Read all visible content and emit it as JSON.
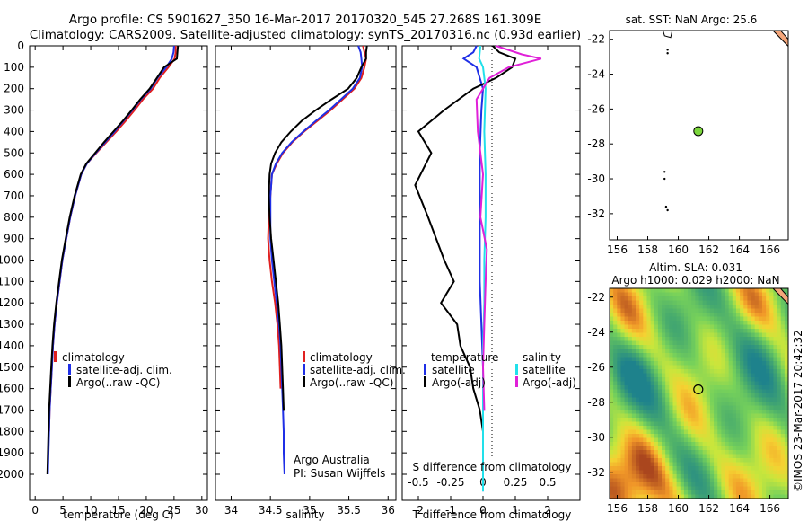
{
  "header": {
    "line1": "Argo profile: CS 5901627_350 16-Mar-2017 20170320_545 27.268S 161.309E",
    "line2": "Climatology: CARS2009. Satellite-adjusted climatology: synTS_20170316.nc (0.93d earlier)"
  },
  "colors": {
    "climatology": "#e02020",
    "satellite": "#1f2fe6",
    "argo": "#000000",
    "salinity_satellite": "#22e0ea",
    "salinity_argo": "#e020d8",
    "float_marker": "#7bd63c",
    "land": "#f4a67a"
  },
  "chart_data": [
    {
      "id": "temperature",
      "type": "line",
      "xlabel": "temperature (deg C)",
      "ylabel": "",
      "xlim": [
        -1,
        31
      ],
      "ylim": [
        2100,
        0
      ],
      "xticks": [
        0,
        5,
        10,
        15,
        20,
        25,
        30
      ],
      "yticks": [
        0,
        100,
        200,
        300,
        400,
        500,
        600,
        700,
        800,
        900,
        1000,
        1100,
        1200,
        1300,
        1400,
        1500,
        1600,
        1700,
        1800,
        1900,
        2000
      ],
      "legend": [
        "climatology",
        "satellite-adj. clim.",
        "Argo(..raw -QC)"
      ],
      "legend_position": "lower-middle",
      "series": [
        {
          "name": "climatology",
          "color_key": "climatology",
          "x": [
            25.3,
            25.3,
            25.1,
            24.0,
            22.4,
            21.2,
            19.4,
            17.9,
            16.3,
            14.6,
            12.8,
            11.0,
            9.3,
            8.3,
            7.2,
            6.3,
            5.6,
            4.9,
            4.4,
            3.9,
            3.5,
            3.2,
            3.0,
            2.8,
            2.6,
            2.5
          ],
          "y": [
            0,
            30,
            60,
            100,
            150,
            200,
            250,
            300,
            350,
            400,
            450,
            500,
            550,
            600,
            700,
            800,
            900,
            1000,
            1100,
            1200,
            1300,
            1400,
            1500,
            1600,
            1700,
            1800
          ]
        },
        {
          "name": "satellite-adj. clim.",
          "color_key": "satellite",
          "x": [
            25.0,
            24.9,
            24.6,
            23.6,
            22.0,
            20.8,
            19.0,
            17.5,
            15.9,
            14.3,
            12.6,
            10.9,
            9.3,
            8.3,
            7.2,
            6.3,
            5.6,
            4.9,
            4.4,
            3.9,
            3.5,
            3.2,
            3.0,
            2.8,
            2.6,
            2.5,
            2.4,
            2.3
          ],
          "y": [
            0,
            30,
            60,
            100,
            150,
            200,
            250,
            300,
            350,
            400,
            450,
            500,
            550,
            600,
            700,
            800,
            900,
            1000,
            1100,
            1200,
            1300,
            1400,
            1500,
            1600,
            1700,
            1800,
            1900,
            2000
          ]
        },
        {
          "name": "Argo(..raw -QC)",
          "color_key": "argo",
          "x": [
            25.7,
            25.6,
            25.5,
            23.2,
            21.9,
            20.6,
            18.9,
            17.4,
            15.8,
            14.1,
            12.4,
            10.8,
            9.2,
            8.2,
            7.1,
            6.2,
            5.5,
            4.8,
            4.3,
            3.8,
            3.4,
            3.1,
            2.9,
            2.7,
            2.5,
            2.4,
            2.3,
            2.2
          ],
          "y": [
            0,
            30,
            60,
            100,
            150,
            200,
            250,
            300,
            350,
            400,
            450,
            500,
            550,
            600,
            700,
            800,
            900,
            1000,
            1100,
            1200,
            1300,
            1400,
            1500,
            1600,
            1700,
            1800,
            1900,
            2000
          ]
        }
      ]
    },
    {
      "id": "salinity",
      "type": "line",
      "xlabel": "salinity",
      "ylabel": "",
      "xlim": [
        33.8,
        36.1
      ],
      "ylim": [
        2100,
        0
      ],
      "xticks": [
        34,
        34.5,
        35,
        35.5,
        36
      ],
      "legend": [
        "climatology",
        "satellite-adj. clim.",
        "Argo(..raw -QC)"
      ],
      "legend_position": "lower-right",
      "annotation": [
        "Argo Australia",
        "PI: Susan Wijffels"
      ],
      "series": [
        {
          "name": "climatology",
          "color_key": "climatology",
          "x": [
            35.68,
            35.7,
            35.72,
            35.7,
            35.66,
            35.57,
            35.42,
            35.27,
            35.1,
            34.93,
            34.78,
            34.66,
            34.58,
            34.52,
            34.5,
            34.48,
            34.47,
            34.49,
            34.52,
            34.56,
            34.59,
            34.61,
            34.62,
            34.63
          ],
          "y": [
            0,
            30,
            60,
            100,
            150,
            200,
            250,
            300,
            350,
            400,
            450,
            500,
            550,
            600,
            700,
            800,
            900,
            1000,
            1100,
            1200,
            1300,
            1400,
            1500,
            1600
          ]
        },
        {
          "name": "satellite-adj. clim.",
          "color_key": "satellite",
          "x": [
            35.62,
            35.65,
            35.66,
            35.67,
            35.64,
            35.55,
            35.4,
            35.25,
            35.08,
            34.92,
            34.77,
            34.65,
            34.57,
            34.52,
            34.5,
            34.5,
            34.5,
            34.52,
            34.55,
            34.58,
            34.61,
            34.63,
            34.64,
            34.65,
            34.66,
            34.67,
            34.67,
            34.68
          ],
          "y": [
            0,
            30,
            60,
            100,
            150,
            200,
            250,
            300,
            350,
            400,
            450,
            500,
            550,
            600,
            700,
            800,
            900,
            1000,
            1100,
            1200,
            1300,
            1400,
            1500,
            1600,
            1700,
            1800,
            1900,
            2000
          ]
        },
        {
          "name": "Argo(..raw -QC)",
          "color_key": "argo",
          "x": [
            35.73,
            35.72,
            35.72,
            35.66,
            35.6,
            35.49,
            35.28,
            35.08,
            34.9,
            34.76,
            34.64,
            34.56,
            34.51,
            34.49,
            34.48,
            34.49,
            34.51,
            34.54,
            34.57,
            34.6,
            34.62,
            34.64,
            34.65,
            34.66,
            34.67
          ],
          "y": [
            0,
            30,
            60,
            100,
            150,
            200,
            250,
            300,
            350,
            400,
            450,
            500,
            550,
            600,
            700,
            800,
            900,
            1000,
            1100,
            1200,
            1300,
            1400,
            1500,
            1600,
            1700
          ]
        }
      ]
    },
    {
      "id": "difference",
      "type": "line",
      "xlabel": "T difference from climatology",
      "xlabel_top": "S difference from climatology",
      "xlim": [
        -2.5,
        3.0
      ],
      "ylim": [
        2100,
        0
      ],
      "xticks": [
        -2,
        -1,
        0,
        1,
        2
      ],
      "xticks_s": [
        -0.5,
        -0.25,
        0,
        0.25,
        0.5
      ],
      "legend_temperature_title": "temperature",
      "legend_salinity_title": "salinity",
      "legend_items": [
        "satellite",
        "Argo(-adj)"
      ],
      "series": [
        {
          "name": "temperature satellite",
          "color_key": "satellite",
          "x": [
            -0.2,
            -0.3,
            -0.6,
            -0.2,
            -0.1,
            0.0,
            -0.05,
            -0.1,
            -0.1,
            -0.1,
            -0.1,
            -0.05,
            0.0,
            0.0,
            0.0,
            0.0,
            0.0,
            0.0,
            0.0,
            0.0,
            0.0,
            0.0
          ],
          "y": [
            0,
            30,
            60,
            100,
            150,
            200,
            300,
            500,
            700,
            900,
            1100,
            1300,
            1500,
            1600,
            1700,
            1800,
            1900,
            1950,
            2000,
            2050,
            2070,
            2080
          ]
        },
        {
          "name": "temperature Argo(-adj)",
          "color_key": "argo",
          "x": [
            0.3,
            0.5,
            1.0,
            0.9,
            0.4,
            -0.3,
            -1.2,
            -2.0,
            -1.6,
            -2.1,
            -1.7,
            -1.2,
            -0.9,
            -1.3,
            -0.8,
            -0.7,
            -0.4,
            -0.3,
            -0.1,
            0.0
          ],
          "y": [
            0,
            30,
            60,
            100,
            150,
            200,
            300,
            400,
            500,
            650,
            800,
            1000,
            1100,
            1200,
            1300,
            1400,
            1500,
            1600,
            1700,
            1800
          ]
        },
        {
          "name": "salinity satellite",
          "color_key": "salinity_satellite",
          "x": [
            -0.02,
            -0.03,
            0.0,
            0.02,
            0.01,
            0.02,
            0.02,
            0.01,
            0.01,
            0.0,
            0.0,
            0.0,
            0.0,
            0.0,
            0.0
          ],
          "y": [
            0,
            60,
            100,
            200,
            400,
            600,
            800,
            1000,
            1200,
            1400,
            1600,
            1800,
            2000,
            2050,
            2080
          ]
        },
        {
          "name": "salinity Argo(-adj)",
          "color_key": "salinity_argo",
          "x": [
            0.1,
            0.3,
            0.45,
            0.2,
            0.05,
            -0.05,
            -0.04,
            0.0,
            -0.02,
            0.03,
            0.02,
            0.01,
            0.0,
            0.01
          ],
          "y": [
            0,
            40,
            60,
            100,
            150,
            250,
            400,
            600,
            800,
            950,
            1100,
            1300,
            1500,
            1700
          ]
        }
      ]
    },
    {
      "id": "sst_map",
      "type": "scatter",
      "title": "sat. SST: NaN Argo: 25.6",
      "xlim": [
        155.5,
        167.2
      ],
      "ylim": [
        -33.5,
        -21.5
      ],
      "xticks": [
        156,
        158,
        160,
        162,
        164,
        166
      ],
      "yticks": [
        -22,
        -24,
        -26,
        -28,
        -30,
        -32
      ],
      "float_position": {
        "lon": 161.309,
        "lat": -27.268
      },
      "track_points": [
        [
          159.3,
          -22.6
        ],
        [
          159.3,
          -22.8
        ],
        [
          159.1,
          -29.6
        ],
        [
          159.1,
          -30.0
        ],
        [
          159.2,
          -31.6
        ],
        [
          159.3,
          -31.8
        ]
      ]
    },
    {
      "id": "sla_map",
      "type": "heatmap",
      "title_line1": "Altim. SLA: 0.031",
      "title_line2": "Argo h1000: 0.029 h2000: NaN",
      "xlim": [
        155.5,
        167.2
      ],
      "ylim": [
        -33.5,
        -21.5
      ],
      "xticks": [
        156,
        158,
        160,
        162,
        164,
        166
      ],
      "yticks": [
        -22,
        -24,
        -26,
        -28,
        -30,
        -32
      ],
      "float_position": {
        "lon": 161.309,
        "lat": -27.268
      }
    }
  ],
  "side_credit": "©IMOS 23-Mar-2017 20:42:32"
}
